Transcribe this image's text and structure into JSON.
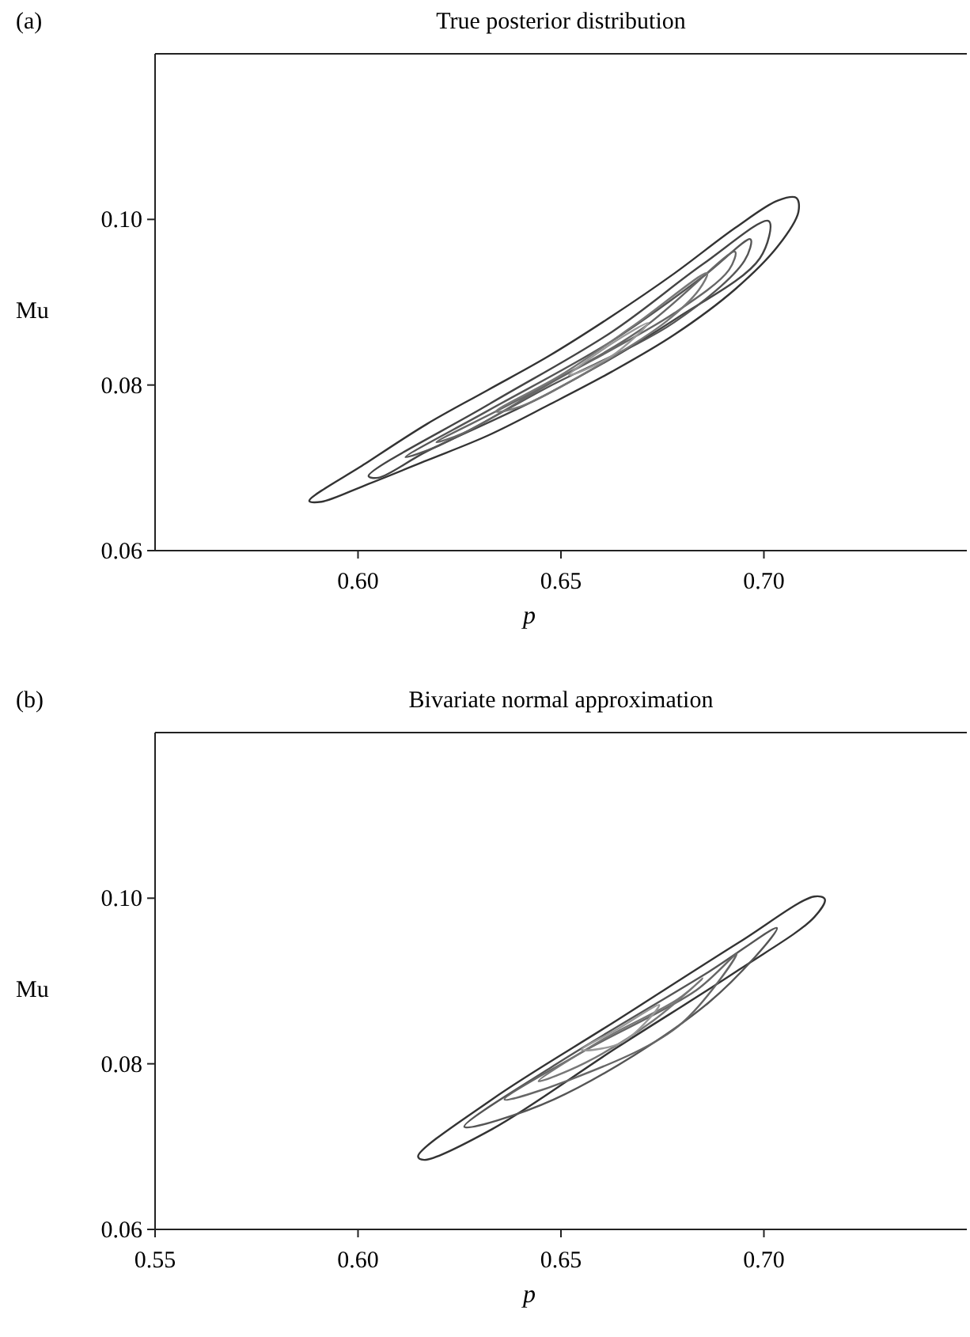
{
  "chart_data": [
    {
      "type": "line",
      "title": "True posterior distribution",
      "annotations": [
        "(a)"
      ],
      "xlabel": "p",
      "ylabel": "Mu",
      "xlim": [
        0.55,
        0.75
      ],
      "ylim": [
        0.06,
        0.12
      ],
      "xticks": [
        {
          "value": 0.6,
          "label": "0.60"
        },
        {
          "value": 0.65,
          "label": "0.65"
        },
        {
          "value": 0.7,
          "label": "0.70"
        }
      ],
      "yticks": [
        {
          "value": 0.06,
          "label": "0.06"
        },
        {
          "value": 0.08,
          "label": "0.08"
        },
        {
          "value": 0.1,
          "label": "0.10"
        }
      ]
    },
    {
      "type": "line",
      "title": "Bivariate normal approximation",
      "annotations": [
        "(b)"
      ],
      "xlabel": "p",
      "ylabel": "Mu",
      "xlim": [
        0.55,
        0.75
      ],
      "ylim": [
        0.06,
        0.12
      ],
      "xticks": [
        {
          "value": 0.55,
          "label": "0.55"
        },
        {
          "value": 0.6,
          "label": "0.60"
        },
        {
          "value": 0.65,
          "label": "0.65"
        },
        {
          "value": 0.7,
          "label": "0.70"
        }
      ],
      "yticks": [
        {
          "value": 0.06,
          "label": "0.06"
        },
        {
          "value": 0.08,
          "label": "0.08"
        },
        {
          "value": 0.1,
          "label": "0.10"
        }
      ]
    }
  ]
}
